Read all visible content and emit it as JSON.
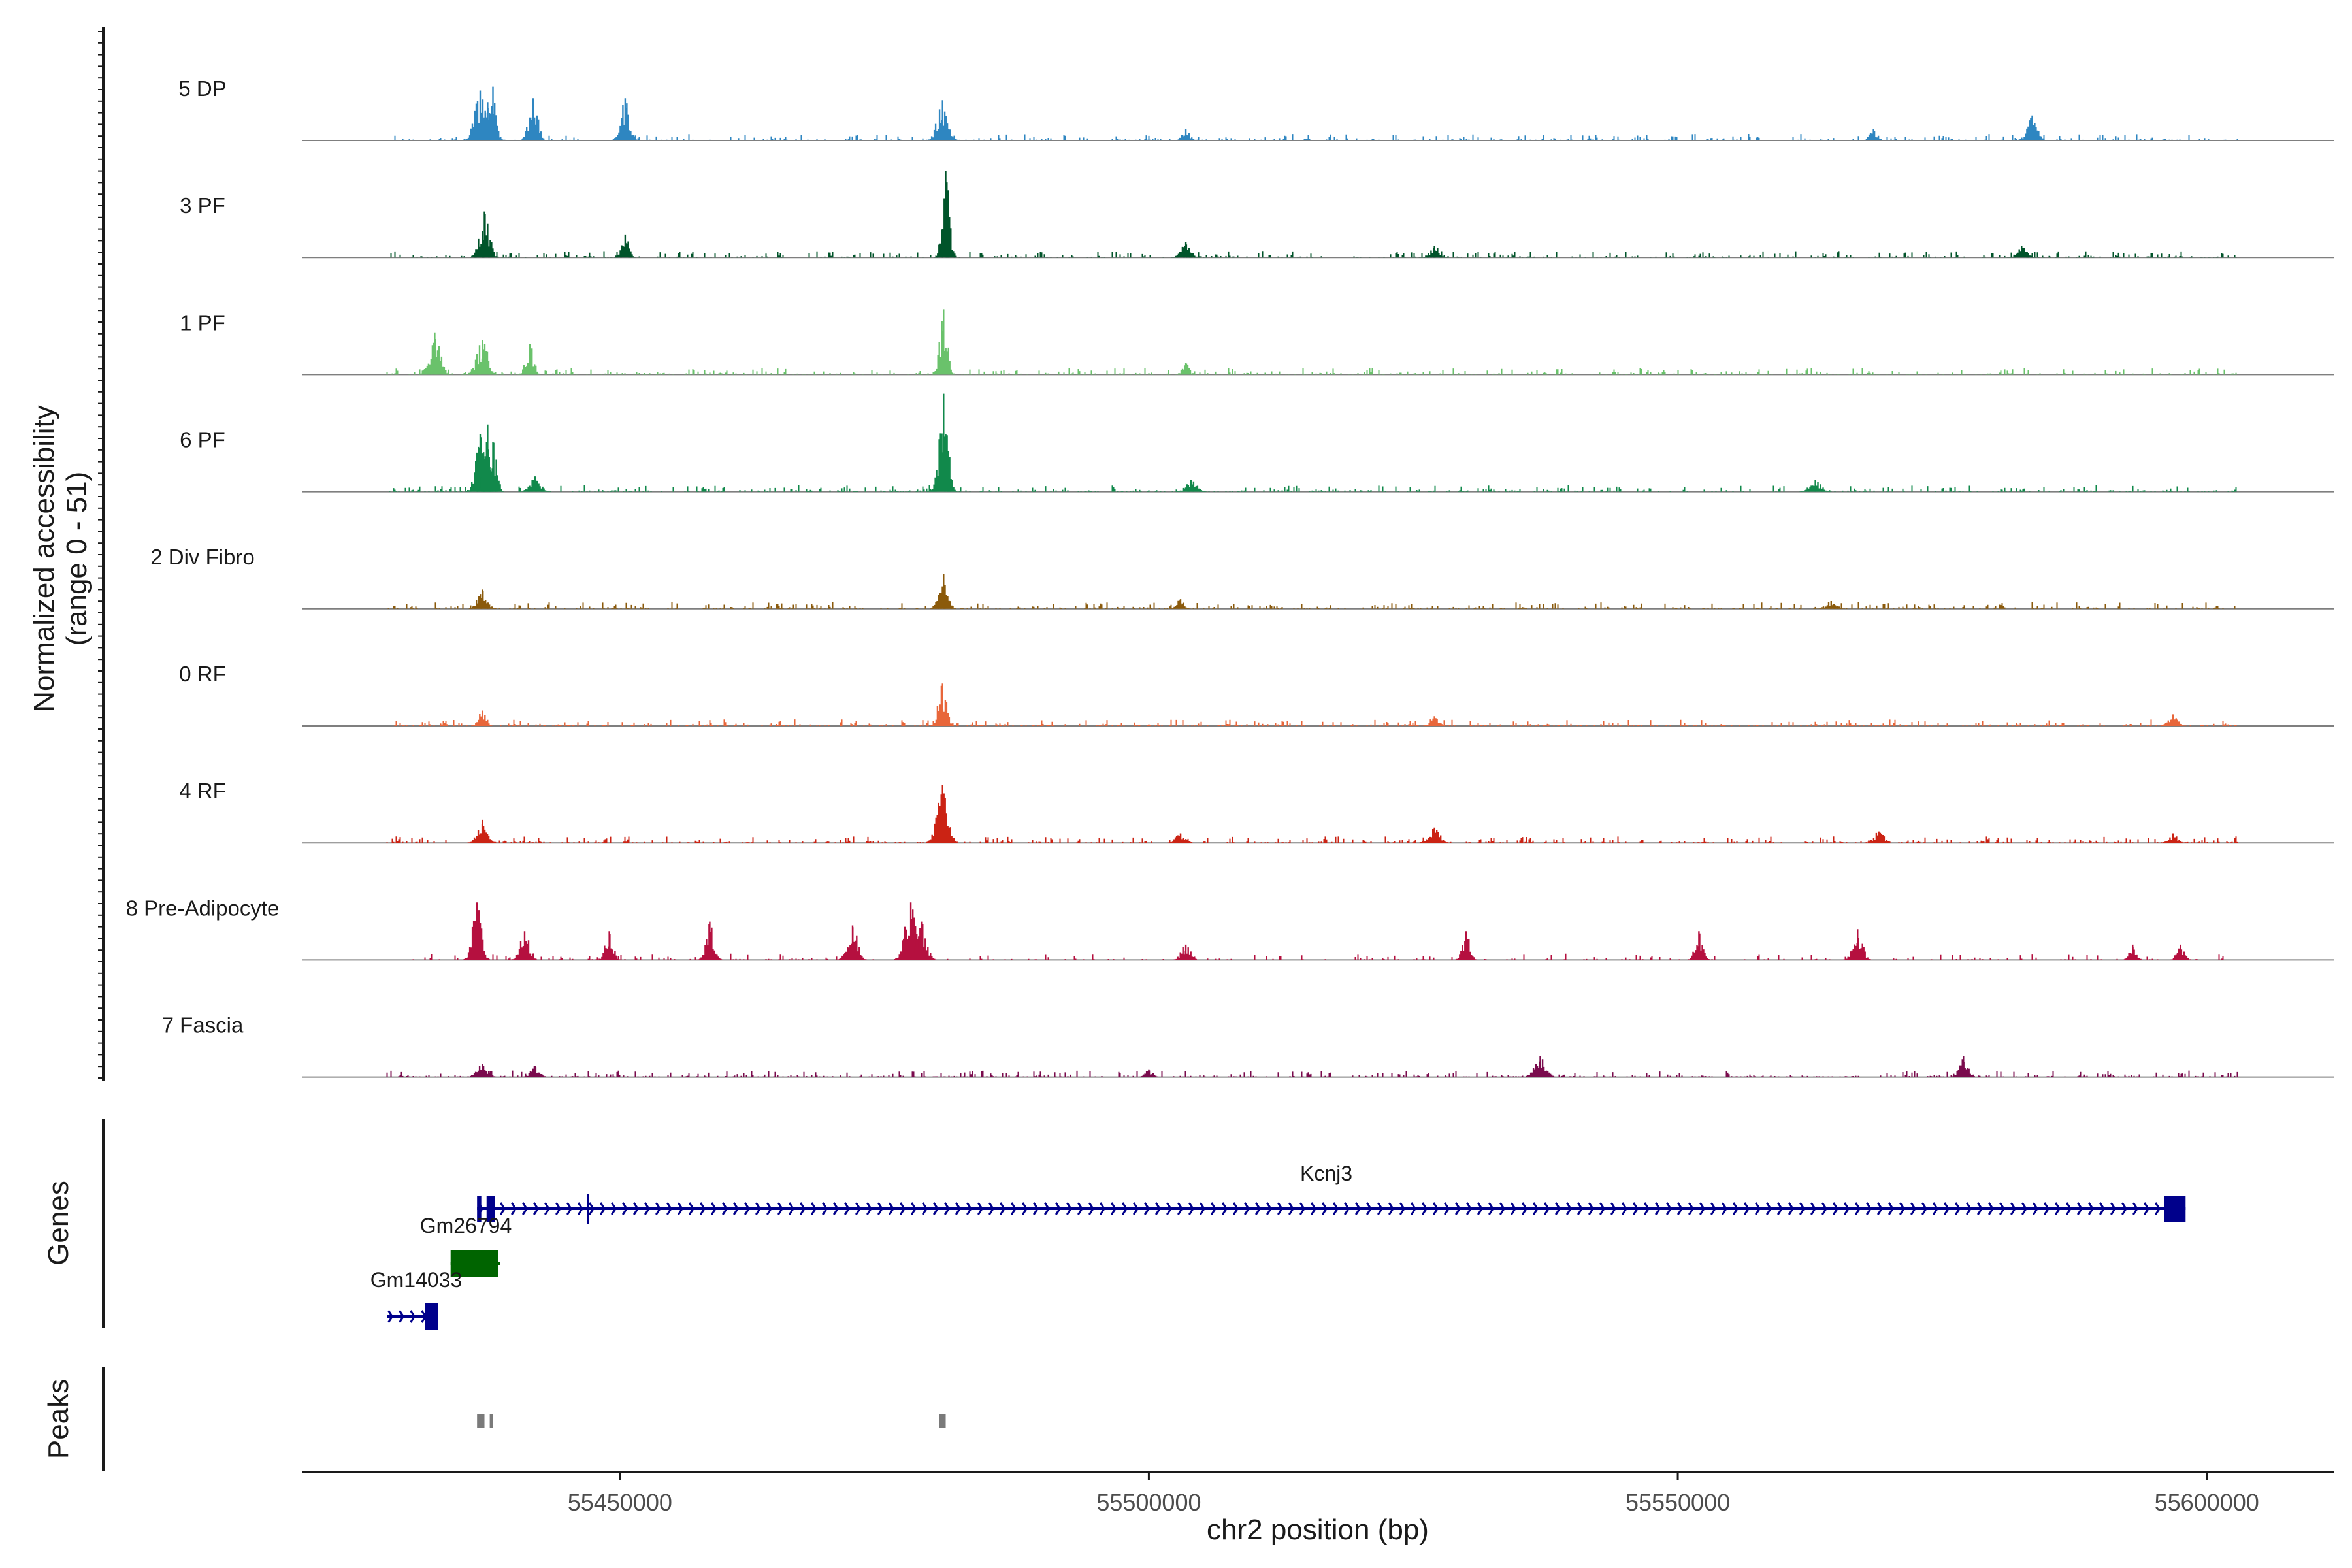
{
  "chart_data": {
    "type": "coverage",
    "y_axis_title": "Normalized accessibility",
    "y_axis_range_label": "(range 0 - 51)",
    "y_range": [
      0,
      51
    ],
    "x_axis_title": "chr2 position (bp)",
    "x_range": [
      55420000,
      55612000
    ],
    "x_ticks": [
      55450000,
      55500000,
      55550000,
      55600000
    ],
    "x_tick_labels": [
      "55450000",
      "55500000",
      "55550000",
      "55600000"
    ],
    "tracks": [
      {
        "name": "5 DP",
        "color": "#2E86C1",
        "density": 0.3,
        "peaks": [
          [
            55436800,
            26
          ],
          [
            55438000,
            28
          ],
          [
            55441800,
            22
          ],
          [
            55450500,
            22
          ],
          [
            55480500,
            21
          ],
          [
            55583500,
            13
          ],
          [
            55437500,
            20
          ],
          [
            55503500,
            6
          ],
          [
            55568500,
            6
          ]
        ]
      },
      {
        "name": "3 PF",
        "color": "#00542A",
        "density": 0.3,
        "peaks": [
          [
            55437200,
            24
          ],
          [
            55450500,
            12
          ],
          [
            55480800,
            45
          ],
          [
            55503500,
            8
          ],
          [
            55582500,
            6
          ],
          [
            55527000,
            6
          ]
        ]
      },
      {
        "name": "1 PF",
        "color": "#6AC26B",
        "density": 0.32,
        "peaks": [
          [
            55432500,
            22
          ],
          [
            55437000,
            18
          ],
          [
            55441500,
            16
          ],
          [
            55480600,
            34
          ],
          [
            55503500,
            6
          ]
        ]
      },
      {
        "name": "6 PF",
        "color": "#11894B",
        "density": 0.32,
        "peaks": [
          [
            55436800,
            30
          ],
          [
            55438000,
            26
          ],
          [
            55437500,
            35
          ],
          [
            55480600,
            51
          ],
          [
            55442000,
            8
          ],
          [
            55504000,
            6
          ],
          [
            55563000,
            6
          ]
        ]
      },
      {
        "name": "2 Div Fibro",
        "color": "#8B5A0B",
        "density": 0.3,
        "peaks": [
          [
            55437000,
            10
          ],
          [
            55480600,
            18
          ],
          [
            55503000,
            5
          ],
          [
            55564500,
            4
          ]
        ]
      },
      {
        "name": "0 RF",
        "color": "#E8663A",
        "density": 0.3,
        "peaks": [
          [
            55437000,
            8
          ],
          [
            55480500,
            22
          ],
          [
            55527000,
            5
          ],
          [
            55596800,
            6
          ]
        ]
      },
      {
        "name": "4 RF",
        "color": "#CB2314",
        "density": 0.3,
        "peaks": [
          [
            55437000,
            12
          ],
          [
            55480500,
            30
          ],
          [
            55503000,
            5
          ],
          [
            55527000,
            8
          ],
          [
            55569000,
            6
          ],
          [
            55596800,
            5
          ]
        ]
      },
      {
        "name": "8 Pre-Adipocyte",
        "color": "#B5103F",
        "density": 0.18,
        "peaks": [
          [
            55436500,
            30
          ],
          [
            55441000,
            15
          ],
          [
            55449000,
            15
          ],
          [
            55458500,
            20
          ],
          [
            55472000,
            18
          ],
          [
            55477500,
            30
          ],
          [
            55478500,
            20
          ],
          [
            55503500,
            8
          ],
          [
            55530000,
            15
          ],
          [
            55552000,
            15
          ],
          [
            55567000,
            16
          ],
          [
            55593000,
            8
          ],
          [
            55597500,
            8
          ]
        ]
      },
      {
        "name": "7 Fascia",
        "color": "#7A0B4D",
        "density": 0.3,
        "peaks": [
          [
            55437000,
            7
          ],
          [
            55442000,
            6
          ],
          [
            55537000,
            11
          ],
          [
            55577000,
            11
          ],
          [
            55500000,
            4
          ]
        ]
      }
    ],
    "genes": [
      {
        "name": "Kcnj3",
        "strand": "+",
        "start": 55436500,
        "end": 55598000,
        "color": "#00008B",
        "exons": [
          [
            55436500,
            55436900
          ],
          [
            55437400,
            55438200
          ],
          [
            55596000,
            55598000
          ]
        ]
      },
      {
        "name": "Gm26794",
        "strand": "-",
        "start": 55434000,
        "end": 55438700,
        "color": "#006400",
        "exons": [
          [
            55434000,
            55438500
          ]
        ]
      },
      {
        "name": "Gm14033",
        "strand": "+",
        "start": 55428000,
        "end": 55432800,
        "color": "#00008B",
        "exons": [
          [
            55431600,
            55432800
          ]
        ]
      }
    ],
    "track_panel_titles": [
      "Genes",
      "Peaks"
    ],
    "peak_regions": [
      [
        55436500,
        55437200
      ],
      [
        55437700,
        55438000
      ],
      [
        55480200,
        55480800
      ]
    ]
  }
}
